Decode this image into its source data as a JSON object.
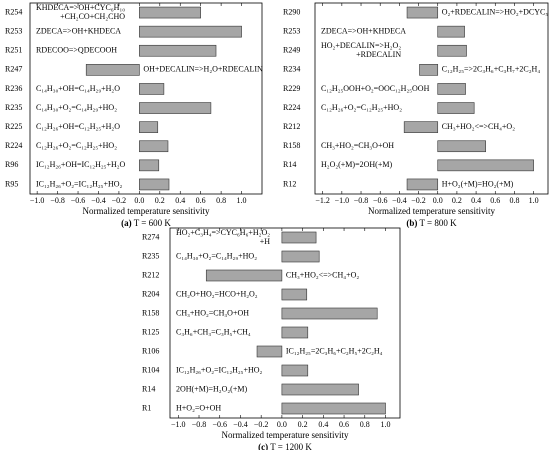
{
  "chart_data": [
    {
      "type": "barh",
      "panel": "(a)",
      "caption": "T = 600 K",
      "xlabel": "Normalized temperature sensitivity",
      "categories": [
        "R254",
        "R253",
        "R251",
        "R247",
        "R236",
        "R235",
        "R225",
        "R224",
        "R96",
        "R95"
      ],
      "annotations": [
        [
          "KHDECA=>OH+CYC₆H₁₀",
          "+CH₂CO+CH₂CHO"
        ],
        [
          "ZDECA=>OH+KHDECA"
        ],
        [
          "RDECOO=>QDECOOH"
        ],
        [
          "OH+DECALIN=>H₂O+RDECALIN"
        ],
        [
          "C₁₄H₃₀+OH=C₁₄H₂₉+H₂O"
        ],
        [
          "C₁₄H₃₀+O₂=C₁₄H₂₉+HO₂"
        ],
        [
          "C₁₂H₂₆+OH=C₁₂H₂₅+H₂O"
        ],
        [
          "C₁₂H₂₆+O₂=C₁₂H₂₅+HO₂"
        ],
        [
          "IC₁₂H₂₆+OH=IC₁₂H₂₅+H₂O"
        ],
        [
          "IC₁₂H₂₆+O₂=IC₁₂H₂₅+HO₂"
        ]
      ],
      "values": [
        0.6,
        1.0,
        0.75,
        -0.52,
        0.24,
        0.7,
        0.18,
        0.28,
        0.19,
        0.29
      ],
      "color": "#a6a6a6",
      "xlim": [
        -1.07,
        1.2
      ],
      "xticks": [
        {
          "value": -1.0,
          "label": "−1.0"
        },
        {
          "value": -0.8,
          "label": "−0.8"
        },
        {
          "value": -0.6,
          "label": "−0.6"
        },
        {
          "value": -0.4,
          "label": "−0.4"
        },
        {
          "value": -0.2,
          "label": "−0.2"
        },
        {
          "value": 0,
          "label": "0.0"
        },
        0.2,
        0.4,
        0.6,
        0.8,
        {
          "value": 1.0,
          "label": "1.0"
        }
      ]
    },
    {
      "type": "barh",
      "panel": "(b)",
      "caption": "T = 800 K",
      "xlabel": "Normalized temperature sensitivity",
      "categories": [
        "R290",
        "R253",
        "R249",
        "R234",
        "R229",
        "R224",
        "R212",
        "R158",
        "R14",
        "R12"
      ],
      "annotations": [
        [
          "O₂+RDECALIN=>HO₂+DCYC₅"
        ],
        [
          "ZDECA=>OH+KHDECA"
        ],
        [
          "HO₂+DECALIN=>H₂O₂",
          "+RDECALIN"
        ],
        [
          "C₁₂H₂₅=>2C₃H₆+C₃H₇+2C₂H₄"
        ],
        [
          "C₁₂H₂₅OOH+O₂=OOC₁₂H₂₅OOH"
        ],
        [
          "C₁₂H₂₆+O₂=C₁₂H₂₅+HO₂"
        ],
        [
          "CH₃+HO₂<=>CH₄+O₂"
        ],
        [
          "CH₃+HO₂=CH₃O+OH"
        ],
        [
          "H₂O₂(+M)=2OH(+M)"
        ],
        [
          "H+O₂(+M)=HO₂(+M)"
        ]
      ],
      "values": [
        -0.32,
        0.28,
        0.3,
        -0.19,
        0.29,
        0.38,
        -0.35,
        0.5,
        1.0,
        -0.32
      ],
      "color": "#a6a6a6",
      "xlim": [
        -1.28,
        1.15
      ],
      "xticks": [
        {
          "value": -1.2,
          "label": "−1.2"
        },
        {
          "value": -1.0,
          "label": "−1.0"
        },
        {
          "value": -0.8,
          "label": "−0.8"
        },
        {
          "value": -0.6,
          "label": "−0.6"
        },
        {
          "value": -0.4,
          "label": "−0.4"
        },
        {
          "value": -0.2,
          "label": "−0.2"
        },
        {
          "value": 0,
          "label": "0.0"
        },
        0.2,
        0.4,
        0.6,
        0.8,
        {
          "value": 1.0,
          "label": "1.0"
        }
      ]
    },
    {
      "type": "barh",
      "panel": "(c)",
      "caption": "T = 1200 K",
      "xlabel": "Normalized temperature sensitivity",
      "categories": [
        "R274",
        "R235",
        "R212",
        "R204",
        "R158",
        "R125",
        "R106",
        "R104",
        "R14",
        "R1"
      ],
      "annotations": [
        [
          "HO₂+C₃H₄=>CYC₆H₆+H₂O₂",
          "+H"
        ],
        [
          "C₁₄H₃₀+O₂=C₁₄H₂₉+HO₂"
        ],
        [
          "CH₃+HO₂<=>CH₄+O₂"
        ],
        [
          "CH₂O+HO₂=HCO+H₂O₂"
        ],
        [
          "CH₃+HO₂=CH₃O+OH"
        ],
        [
          "C₃H₆+CH₃=C₃H₅+CH₄"
        ],
        [
          "IC₁₂H₂₅=2C₃H₆+C₂H₅+2C₂H₄"
        ],
        [
          "IC₁₂H₂₆+O₂=IC₁₂H₂₅+HO₂"
        ],
        [
          "2OH(+M)=H₂O₂(+M)"
        ],
        [
          "H+O₂=O+OH"
        ]
      ],
      "values": [
        0.33,
        0.36,
        -0.73,
        0.24,
        0.92,
        0.25,
        -0.24,
        0.25,
        0.74,
        1.0
      ],
      "color": "#a6a6a6",
      "xlim": [
        -1.08,
        1.14
      ],
      "xticks": [
        {
          "value": -1.0,
          "label": "−1.0"
        },
        {
          "value": -0.8,
          "label": "−0.8"
        },
        {
          "value": -0.6,
          "label": "−0.6"
        },
        {
          "value": -0.4,
          "label": "−0.4"
        },
        {
          "value": -0.2,
          "label": "−0.2"
        },
        {
          "value": 0,
          "label": "0.0"
        },
        0.2,
        0.4,
        0.6,
        0.8,
        {
          "value": 1.0,
          "label": "1.0"
        }
      ]
    }
  ]
}
